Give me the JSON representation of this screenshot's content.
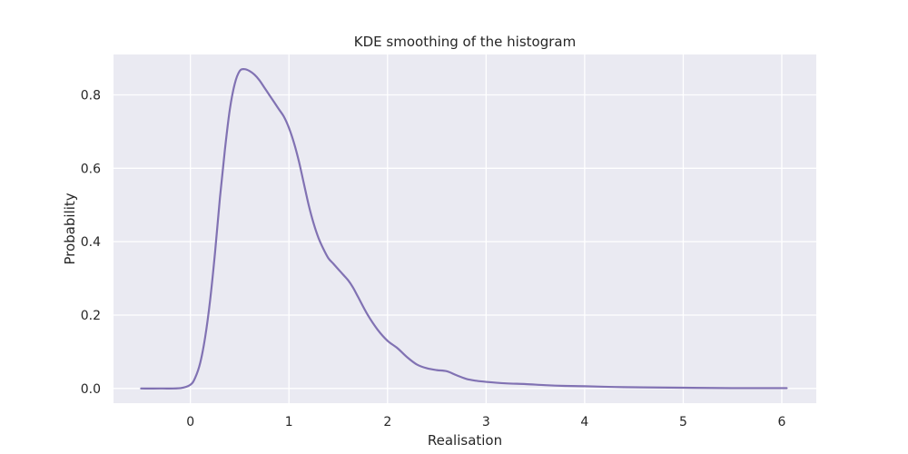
{
  "chart_data": {
    "type": "line",
    "title": "KDE smoothing of the histogram",
    "xlabel": "Realisation",
    "ylabel": "Probability",
    "xlim": [
      -0.78,
      6.35
    ],
    "ylim": [
      -0.04,
      0.91
    ],
    "x_ticks": [
      0,
      1,
      2,
      3,
      4,
      5,
      6
    ],
    "y_ticks": [
      0.0,
      0.2,
      0.4,
      0.6,
      0.8
    ],
    "y_tick_format": 1,
    "grid": true,
    "background": "#eaeaf2",
    "grid_color": "#ffffff",
    "series": [
      {
        "color": "#8172b3",
        "x": [
          -0.5,
          -0.3,
          -0.1,
          0.0,
          0.05,
          0.1,
          0.15,
          0.2,
          0.25,
          0.3,
          0.35,
          0.4,
          0.45,
          0.5,
          0.55,
          0.6,
          0.65,
          0.7,
          0.75,
          0.8,
          0.85,
          0.9,
          0.95,
          1.0,
          1.05,
          1.1,
          1.15,
          1.2,
          1.25,
          1.3,
          1.35,
          1.4,
          1.45,
          1.5,
          1.55,
          1.6,
          1.65,
          1.7,
          1.8,
          1.9,
          2.0,
          2.1,
          2.2,
          2.3,
          2.4,
          2.5,
          2.6,
          2.7,
          2.8,
          2.9,
          3.0,
          3.2,
          3.4,
          3.6,
          3.8,
          4.0,
          4.3,
          4.6,
          5.0,
          5.5,
          6.05
        ],
        "y": [
          0.0,
          0.0,
          0.001,
          0.01,
          0.03,
          0.07,
          0.14,
          0.24,
          0.37,
          0.52,
          0.65,
          0.76,
          0.83,
          0.865,
          0.87,
          0.865,
          0.855,
          0.84,
          0.82,
          0.8,
          0.78,
          0.76,
          0.74,
          0.71,
          0.67,
          0.62,
          0.56,
          0.5,
          0.45,
          0.41,
          0.38,
          0.355,
          0.34,
          0.325,
          0.31,
          0.295,
          0.275,
          0.25,
          0.2,
          0.16,
          0.13,
          0.11,
          0.085,
          0.065,
          0.055,
          0.05,
          0.047,
          0.036,
          0.026,
          0.021,
          0.018,
          0.014,
          0.012,
          0.009,
          0.007,
          0.006,
          0.004,
          0.003,
          0.002,
          0.001,
          0.001
        ]
      }
    ]
  }
}
